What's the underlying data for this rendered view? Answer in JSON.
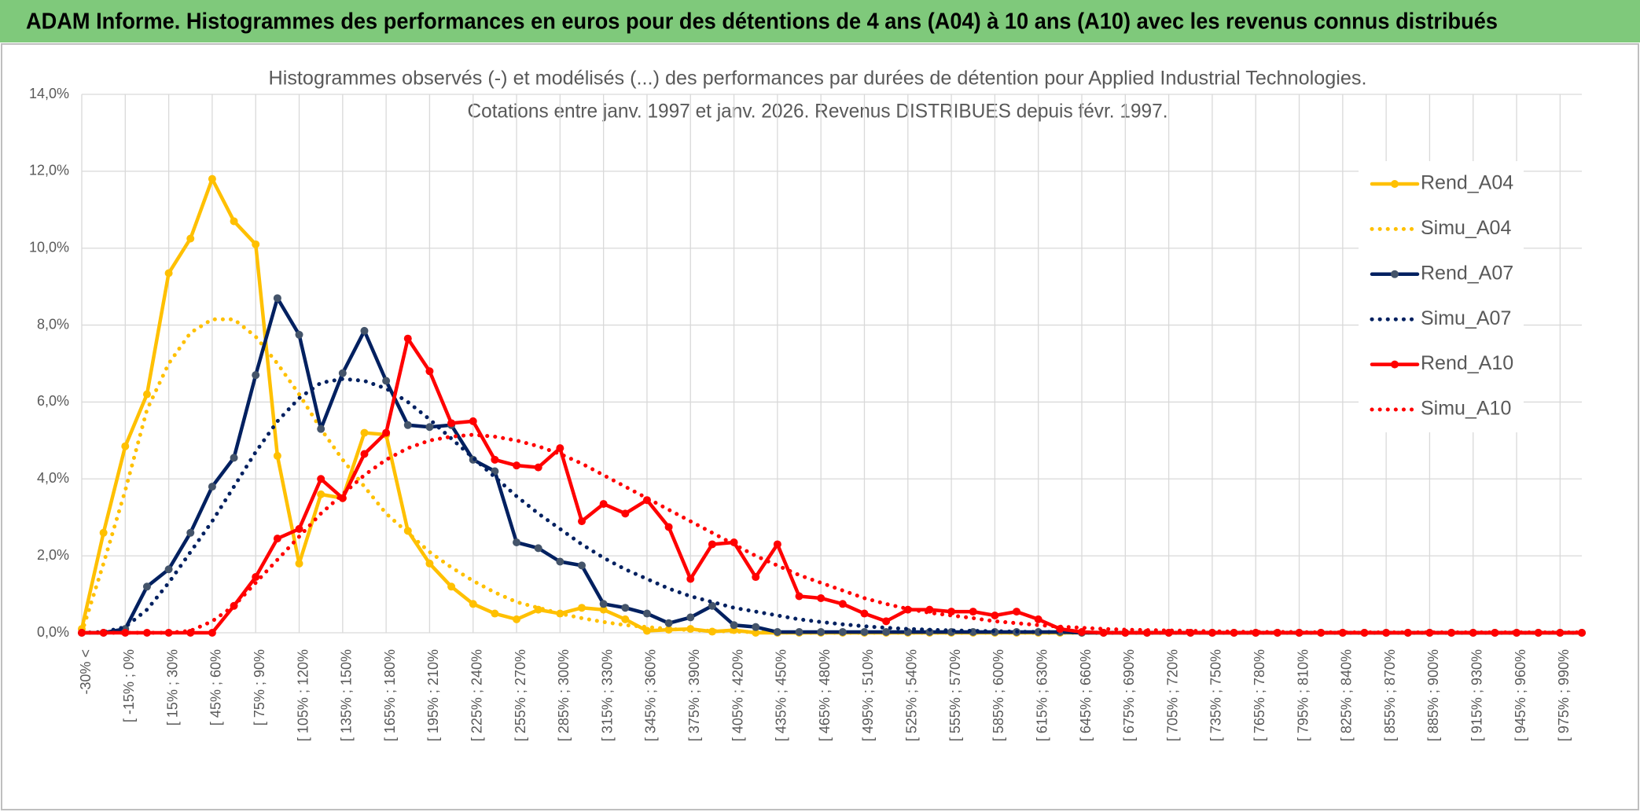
{
  "chart_data": {
    "type": "line",
    "title": "ADAM Informe. Histogrammes des performances en euros pour des détentions de 4 ans (A04) à 10 ans (A10) avec les revenus connus distribués",
    "subtitle": [
      "Histogrammes observés (-) et modélisés (...) des performances par durées de détention pour Applied Industrial Technologies.",
      "Cotations entre janv. 1997 et janv. 2026. Revenus DISTRIBUES depuis févr. 1997."
    ],
    "categories": [
      "-30% <",
      null,
      "[ -15% ; 0%",
      null,
      "[ 15% ; 30%",
      null,
      "[ 45% ; 60%",
      null,
      "[ 75% ; 90%",
      null,
      "[ 105% ; 120%",
      null,
      "[ 135% ; 150%",
      null,
      "[ 165% ; 180%",
      null,
      "[ 195% ; 210%",
      null,
      "[ 225% ; 240%",
      null,
      "[ 255% ; 270%",
      null,
      "[ 285% ; 300%",
      null,
      "[ 315% ; 330%",
      null,
      "[ 345% ; 360%",
      null,
      "[ 375% ; 390%",
      null,
      "[ 405% ; 420%",
      null,
      "[ 435% ; 450%",
      null,
      "[ 465% ; 480%",
      null,
      "[ 495% ; 510%",
      null,
      "[ 525% ; 540%",
      null,
      "[ 555% ; 570%",
      null,
      "[ 585% ; 600%",
      null,
      "[ 615% ; 630%",
      null,
      "[ 645% ; 660%",
      null,
      "[ 675% ; 690%",
      null,
      "[ 705% ; 720%",
      null,
      "[ 735% ; 750%",
      null,
      "[ 765% ; 780%",
      null,
      "[ 795% ; 810%",
      null,
      "[ 825% ; 840%",
      null,
      "[ 855% ; 870%",
      null,
      "[ 885% ; 900%",
      null,
      "[ 915% ; 930%",
      null,
      "[ 945% ; 960%",
      null,
      "[ 975% ; 990%",
      null
    ],
    "series": [
      {
        "name": "Rend_A04",
        "color": "#ffc000",
        "marker": true,
        "marker_color": "#ffc000",
        "dash": false,
        "values": [
          0.1,
          2.6,
          4.85,
          6.2,
          9.35,
          10.25,
          11.8,
          10.7,
          10.1,
          4.6,
          1.8,
          3.6,
          3.5,
          5.2,
          5.15,
          2.65,
          1.8,
          1.2,
          0.75,
          0.5,
          0.35,
          0.6,
          0.5,
          0.65,
          0.6,
          0.35,
          0.05,
          0.08,
          0.1,
          0.03,
          0.07,
          0,
          0,
          0,
          0,
          0,
          0,
          0,
          0,
          0,
          0,
          0,
          0,
          0,
          0,
          0,
          0,
          0,
          0,
          0,
          0,
          0,
          0,
          0,
          0,
          0,
          0,
          0,
          0,
          0,
          0,
          0,
          0,
          0,
          0,
          0,
          0,
          0,
          0,
          0
        ]
      },
      {
        "name": "Simu_A04",
        "color": "#ffc000",
        "marker": false,
        "dash": true,
        "values": [
          0,
          1.8,
          3.7,
          5.8,
          7.0,
          7.8,
          8.15,
          8.15,
          7.7,
          7.0,
          6.2,
          5.3,
          4.5,
          3.8,
          3.1,
          2.6,
          2.1,
          1.7,
          1.35,
          1.05,
          0.8,
          0.65,
          0.5,
          0.38,
          0.28,
          0.2,
          0.15,
          0.1,
          0.07,
          0.05,
          0.03,
          0.02,
          0.01,
          0,
          0,
          0,
          0,
          0,
          0,
          0,
          0,
          0,
          0,
          0,
          0,
          0,
          0,
          0,
          0,
          0,
          0,
          0,
          0,
          0,
          0,
          0,
          0,
          0,
          0,
          0,
          0,
          0,
          0,
          0,
          0,
          0,
          0,
          0,
          0,
          0
        ]
      },
      {
        "name": "Rend_A07",
        "color": "#002060",
        "marker": true,
        "marker_color": "#44546a",
        "dash": false,
        "values": [
          0,
          0,
          0.1,
          1.2,
          1.65,
          2.6,
          3.8,
          4.55,
          6.7,
          8.7,
          7.75,
          5.3,
          6.75,
          7.85,
          6.55,
          5.4,
          5.35,
          5.4,
          4.5,
          4.2,
          2.35,
          2.2,
          1.85,
          1.75,
          0.75,
          0.65,
          0.5,
          0.25,
          0.4,
          0.7,
          0.2,
          0.15,
          0.02,
          0.02,
          0.02,
          0.02,
          0.02,
          0.02,
          0.02,
          0.02,
          0.02,
          0.02,
          0.02,
          0.02,
          0.02,
          0.02,
          0,
          0,
          0,
          0,
          0,
          0,
          0,
          0,
          0,
          0,
          0,
          0,
          0,
          0,
          0,
          0,
          0,
          0,
          0,
          0,
          0,
          0,
          0,
          0
        ]
      },
      {
        "name": "Simu_A07",
        "color": "#002060",
        "marker": false,
        "dash": true,
        "values": [
          0,
          0.02,
          0.15,
          0.6,
          1.3,
          2.1,
          2.9,
          3.8,
          4.7,
          5.5,
          6.1,
          6.5,
          6.6,
          6.55,
          6.35,
          6.0,
          5.55,
          5.05,
          4.55,
          4.05,
          3.55,
          3.1,
          2.7,
          2.3,
          1.95,
          1.65,
          1.4,
          1.15,
          0.95,
          0.8,
          0.65,
          0.55,
          0.45,
          0.35,
          0.28,
          0.22,
          0.17,
          0.13,
          0.1,
          0.08,
          0.06,
          0.05,
          0.04,
          0.03,
          0.02,
          0.02,
          0.01,
          0,
          0,
          0,
          0,
          0,
          0,
          0,
          0,
          0,
          0,
          0,
          0,
          0,
          0,
          0,
          0,
          0,
          0,
          0,
          0,
          0,
          0,
          0
        ]
      },
      {
        "name": "Rend_A10",
        "color": "#ff0000",
        "marker": true,
        "marker_color": "#ff0000",
        "dash": false,
        "values": [
          0,
          0,
          0,
          0,
          0,
          0,
          0,
          0.7,
          1.45,
          2.45,
          2.7,
          4.0,
          3.5,
          4.65,
          5.2,
          7.65,
          6.8,
          5.45,
          5.5,
          4.5,
          4.35,
          4.3,
          4.8,
          2.9,
          3.35,
          3.1,
          3.45,
          2.75,
          1.4,
          2.3,
          2.35,
          1.45,
          2.3,
          0.95,
          0.9,
          0.75,
          0.5,
          0.3,
          0.6,
          0.6,
          0.55,
          0.55,
          0.45,
          0.55,
          0.35,
          0.1,
          0.02,
          0,
          0,
          0,
          0,
          0,
          0,
          0,
          0,
          0,
          0,
          0,
          0,
          0,
          0,
          0,
          0,
          0,
          0,
          0,
          0,
          0,
          0,
          0
        ]
      },
      {
        "name": "Simu_A10",
        "color": "#ff0000",
        "marker": false,
        "dash": true,
        "values": [
          0,
          0,
          0,
          0,
          0,
          0.05,
          0.3,
          0.7,
          1.3,
          1.9,
          2.5,
          3.1,
          3.6,
          4.1,
          4.5,
          4.8,
          5.0,
          5.1,
          5.15,
          5.1,
          5.0,
          4.85,
          4.65,
          4.4,
          4.1,
          3.8,
          3.5,
          3.2,
          2.9,
          2.6,
          2.3,
          2.0,
          1.75,
          1.5,
          1.3,
          1.1,
          0.9,
          0.75,
          0.62,
          0.52,
          0.45,
          0.38,
          0.3,
          0.25,
          0.2,
          0.16,
          0.13,
          0.1,
          0.08,
          0.07,
          0.06,
          0.05,
          0.04,
          0.03,
          0.02,
          0.02,
          0.02,
          0.01,
          0.01,
          0.01,
          0.01,
          0.01,
          0.01,
          0.01,
          0.01,
          0.01,
          0.01,
          0.01,
          0.01,
          0.01
        ]
      }
    ],
    "ylim": [
      0,
      14
    ],
    "yticks": [
      {
        "value": 0,
        "label": "0,0%"
      },
      {
        "value": 2,
        "label": "2,0%"
      },
      {
        "value": 4,
        "label": "4,0%"
      },
      {
        "value": 6,
        "label": "6,0%"
      },
      {
        "value": 8,
        "label": "8,0%"
      },
      {
        "value": 10,
        "label": "10,0%"
      },
      {
        "value": 12,
        "label": "12,0%"
      },
      {
        "value": 14,
        "label": "14,0%"
      }
    ],
    "grid": true,
    "legend": "right"
  }
}
